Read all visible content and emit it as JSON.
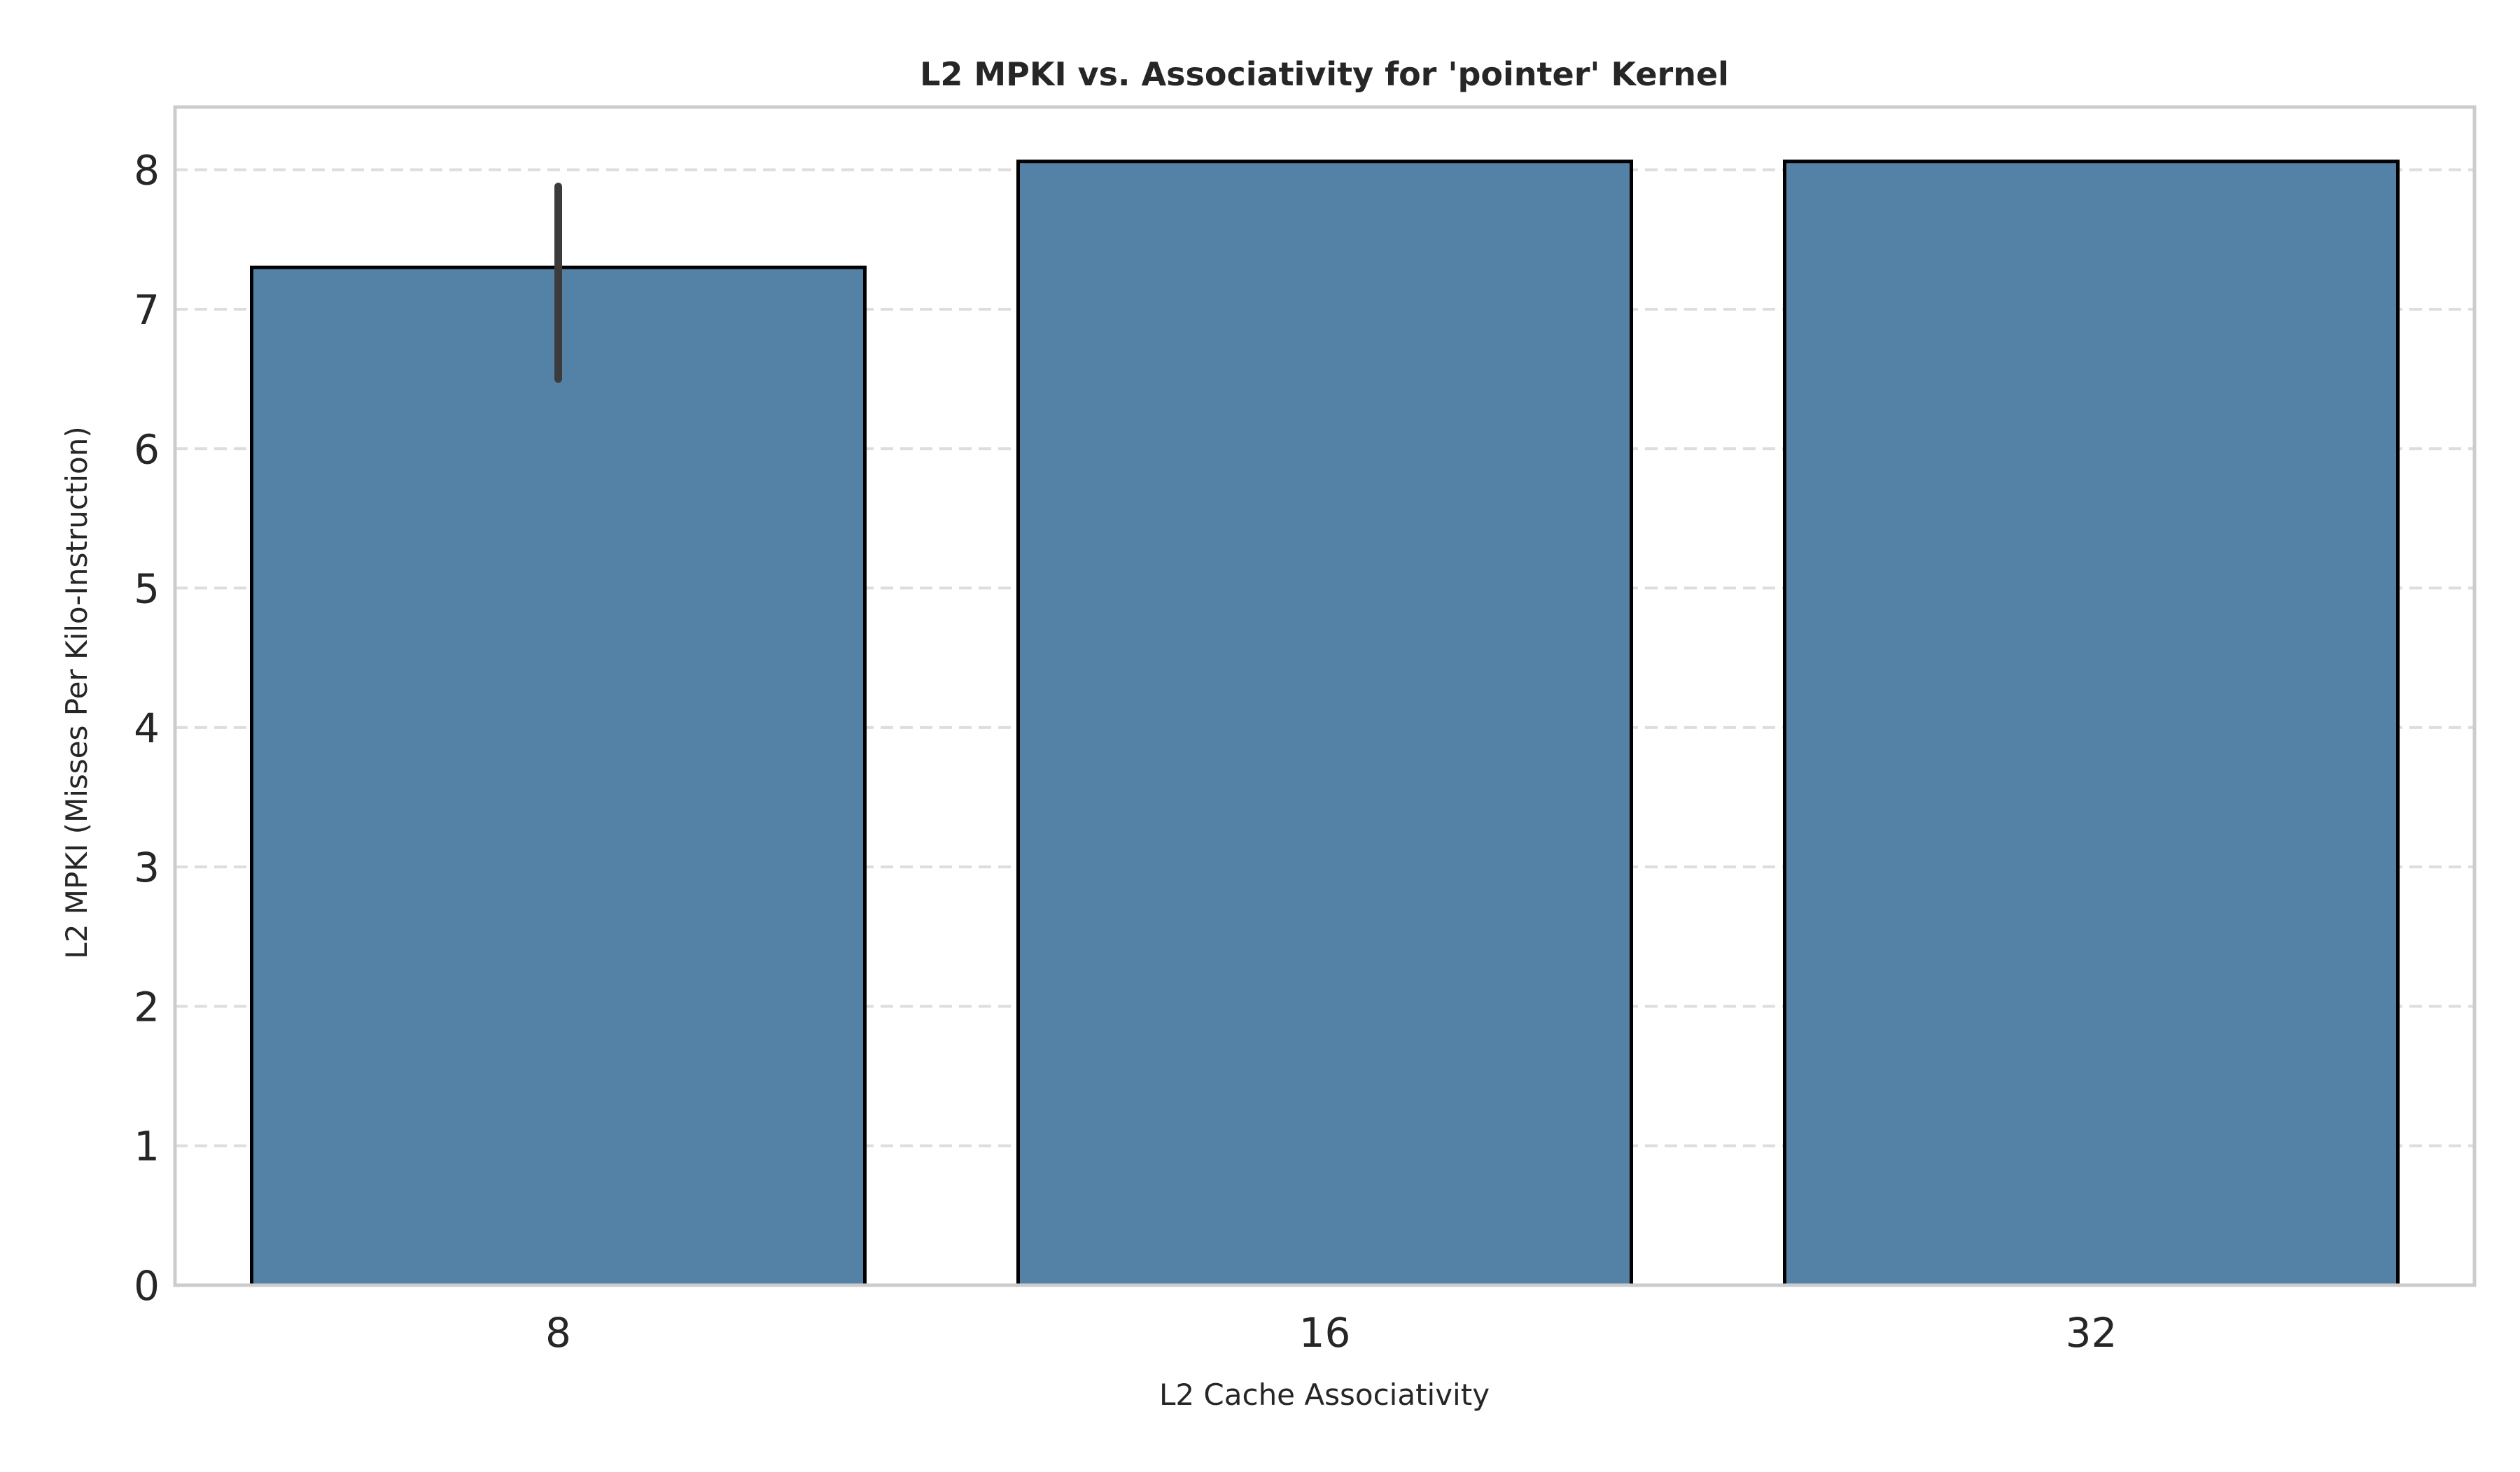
{
  "chart_data": {
    "type": "bar",
    "title": "L2 MPKI vs. Associativity for 'pointer' Kernel",
    "xlabel": "L2 Cache Associativity",
    "ylabel": "L2 MPKI (Misses Per Kilo-Instruction)",
    "categories": [
      "8",
      "16",
      "32"
    ],
    "values": [
      7.3,
      8.06,
      8.06
    ],
    "error_bars": [
      {
        "category": "8",
        "low": 6.5,
        "high": 7.88
      },
      {
        "category": "16",
        "low": null,
        "high": null
      },
      {
        "category": "32",
        "low": null,
        "high": null
      }
    ],
    "ylim": [
      0,
      8.45
    ],
    "yticks": [
      0,
      1,
      2,
      3,
      4,
      5,
      6,
      7,
      8
    ],
    "grid": "horizontal-dashed",
    "legend": "none",
    "colors": {
      "bar_fill": "#5482a6",
      "bar_edge": "#000000",
      "error_bar": "#3b3b3b",
      "grid": "#dddddd",
      "axes_frame": "#cccccc",
      "text": "#262626"
    }
  }
}
